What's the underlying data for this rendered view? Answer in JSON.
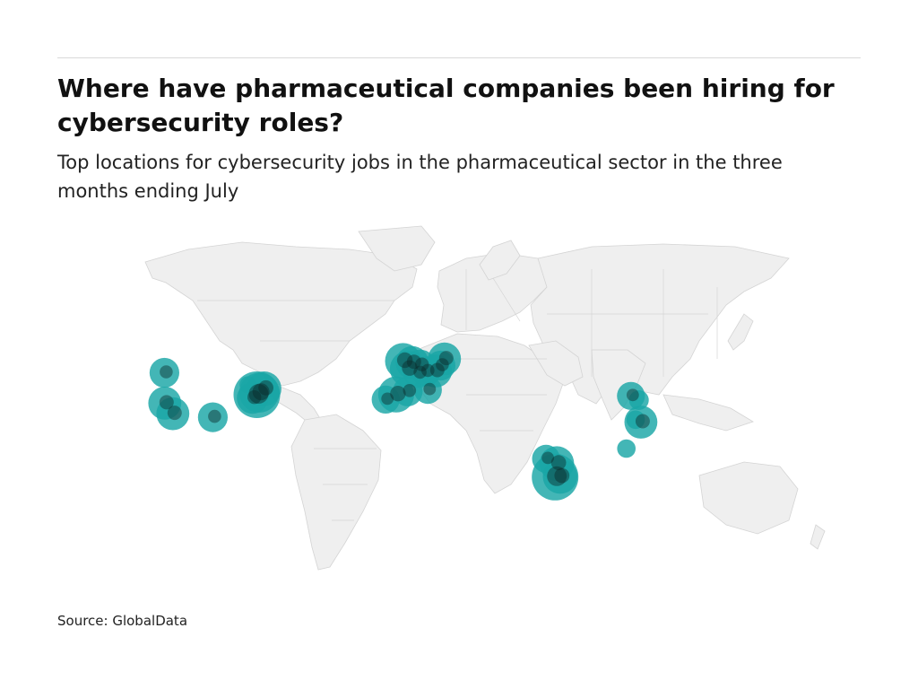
{
  "header": {
    "title": "Where have pharmaceutical companies been hiring for cybersecurity roles?",
    "subtitle": "Top locations for cybersecurity jobs in the pharmaceutical sector in the three months ending July"
  },
  "footer": {
    "source": "Source: GlobalData"
  },
  "map": {
    "land_color": "#efefef",
    "border_color": "#d4d4d4",
    "bubble_color": "#1aa6a6"
  },
  "chart_data": {
    "type": "bubble-map",
    "title": "Where have pharmaceutical companies been hiring for cybersecurity roles?",
    "subtitle": "Top locations for cybersecurity jobs in the pharmaceutical sector in the three months ending July",
    "points": [
      {
        "lon": -122.3,
        "lat": 47.6,
        "size": 0.35
      },
      {
        "lon": -122.1,
        "lat": 37.5,
        "size": 0.45
      },
      {
        "lon": -118.0,
        "lat": 34.0,
        "size": 0.45
      },
      {
        "lon": -97.5,
        "lat": 32.8,
        "size": 0.35
      },
      {
        "lon": -79.5,
        "lat": 43.6,
        "size": 0.08
      },
      {
        "lon": -75.0,
        "lat": 40.3,
        "size": 1.0
      },
      {
        "lon": -73.8,
        "lat": 41.0,
        "size": 0.7
      },
      {
        "lon": -71.3,
        "lat": 42.3,
        "size": 0.5
      },
      {
        "lon": -77.2,
        "lat": 39.2,
        "size": 0.4
      },
      {
        "lon": -0.2,
        "lat": 51.5,
        "size": 0.55
      },
      {
        "lon": 2.3,
        "lat": 48.9,
        "size": 0.55
      },
      {
        "lon": 4.5,
        "lat": 51.0,
        "size": 0.45
      },
      {
        "lon": 8.6,
        "lat": 50.1,
        "size": 0.4
      },
      {
        "lon": 12.5,
        "lat": 41.9,
        "size": 0.3
      },
      {
        "lon": 7.6,
        "lat": 47.5,
        "size": 0.35
      },
      {
        "lon": 11.6,
        "lat": 48.1,
        "size": 0.35
      },
      {
        "lon": 16.4,
        "lat": 48.2,
        "size": 0.45
      },
      {
        "lon": 19.0,
        "lat": 50.0,
        "size": 0.35
      },
      {
        "lon": 21.0,
        "lat": 52.2,
        "size": 0.45
      },
      {
        "lon": -3.7,
        "lat": 40.4,
        "size": 0.55
      },
      {
        "lon": 2.2,
        "lat": 41.4,
        "size": 0.35
      },
      {
        "lon": -9.1,
        "lat": 38.7,
        "size": 0.3
      },
      {
        "lon": 77.6,
        "lat": 12.9,
        "size": 1.0
      },
      {
        "lon": 78.5,
        "lat": 17.4,
        "size": 0.5
      },
      {
        "lon": 73.0,
        "lat": 19.0,
        "size": 0.3
      },
      {
        "lon": 80.2,
        "lat": 13.1,
        "size": 0.5
      },
      {
        "lon": 116.4,
        "lat": 39.9,
        "size": 0.3
      },
      {
        "lon": 120.5,
        "lat": 38.5,
        "size": 0.12
      },
      {
        "lon": 121.5,
        "lat": 31.2,
        "size": 0.45
      },
      {
        "lon": 118.8,
        "lat": 32.0,
        "size": 0.1
      },
      {
        "lon": 114.1,
        "lat": 22.4,
        "size": 0.1
      }
    ]
  }
}
